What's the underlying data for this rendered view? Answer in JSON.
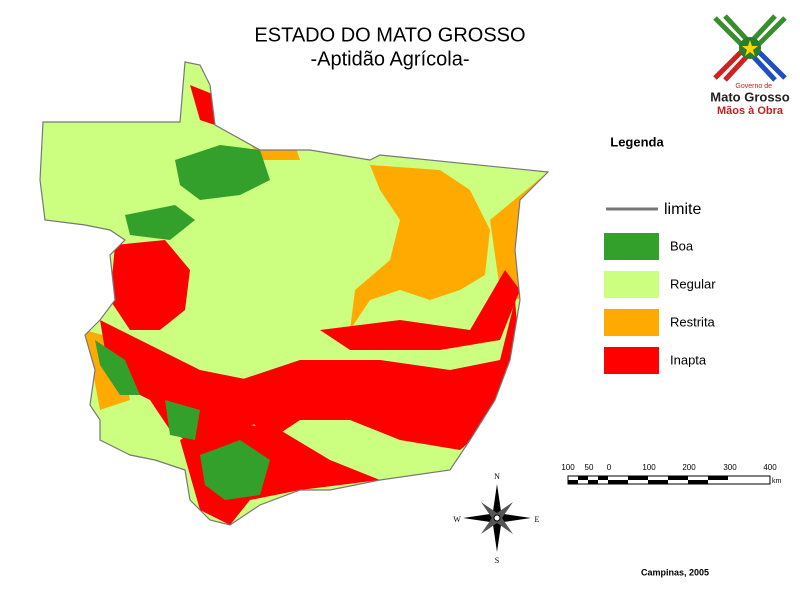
{
  "title": "ESTADO DO MATO GROSSO",
  "subtitle": "-Aptidão Agrícola-",
  "legend": {
    "title": "Legenda",
    "boundary": "limite",
    "items": [
      {
        "label": "Boa",
        "color": "#33a02c"
      },
      {
        "label": "Regular",
        "color": "#ccff80"
      },
      {
        "label": "Restrita",
        "color": "#ffaa00"
      },
      {
        "label": "Inapta",
        "color": "#ff0000"
      }
    ]
  },
  "scale_bar": {
    "labels": [
      "100",
      "50",
      "0",
      "100",
      "200",
      "300",
      "400"
    ],
    "unit": "km"
  },
  "compass": {
    "n": "N",
    "s": "S",
    "e": "E",
    "w": "W"
  },
  "logo": {
    "line1": "Governo de",
    "line2": "Mato Grosso",
    "line3": "Mãos à Obra"
  },
  "credit": "Campinas, 2005"
}
